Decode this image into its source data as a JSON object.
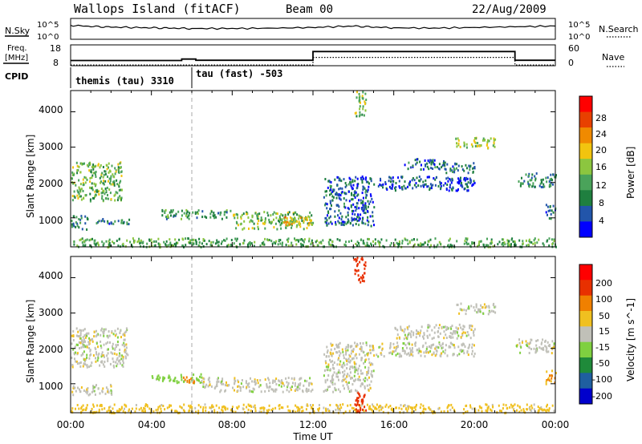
{
  "header": {
    "station": "Wallops Island (fitACF)",
    "beam": "Beam 00",
    "date": "22/Aug/2009"
  },
  "time_axis": {
    "label": "Time UT",
    "ticks": [
      "00:00",
      "04:00",
      "08:00",
      "12:00",
      "16:00",
      "20:00",
      "00:00"
    ]
  },
  "noise_panel": {
    "left_label": "N.Sky",
    "right_label": "N.Search",
    "left_ticks": [
      "10^5",
      "10^0"
    ],
    "right_ticks": [
      "10^5",
      "10^0"
    ]
  },
  "freq_panel": {
    "left_label_top": "Freq.",
    "left_label_unit": "[MHz]",
    "right_label": "Nave",
    "left_ticks": [
      "18",
      "8"
    ],
    "right_ticks": [
      "60",
      "0"
    ]
  },
  "cpid": {
    "label": "CPID",
    "segments": [
      "themis (tau) 3310",
      "tau (fast) -503"
    ]
  },
  "power_panel": {
    "ylabel": "Slant Range [km]",
    "yticks": [
      "4000",
      "3000",
      "2000",
      "1000"
    ],
    "colorbar_label": "Power [dB]",
    "colorbar_ticks": [
      "28",
      "24",
      "20",
      "16",
      "12",
      "8",
      "4"
    ]
  },
  "velocity_panel": {
    "ylabel": "Slant Range [km]",
    "yticks": [
      "4000",
      "3000",
      "2000",
      "1000"
    ],
    "colorbar_label": "Velocity [m s^-1]",
    "colorbar_ticks": [
      "200",
      "100",
      "50",
      "15",
      "-15",
      "-50",
      "-100",
      "-200"
    ]
  },
  "colors": {
    "power_scale": [
      "#0000ff",
      "#2255aa",
      "#1f7f3f",
      "#4aa35a",
      "#8cc63f",
      "#f2c40f",
      "#f08a00",
      "#e84000",
      "#ff0000"
    ],
    "velocity_scale": [
      "#0000cc",
      "#1f5fa0",
      "#1f8a3a",
      "#7fd040",
      "#c0c0b8",
      "#f0c020",
      "#f08000",
      "#e83000",
      "#ff0000"
    ]
  },
  "chart_data": {
    "type": "heatmap",
    "x_unit": "hours UT",
    "xlim": [
      0,
      24
    ],
    "ylim": [
      180,
      4600
    ],
    "noise_sky": [
      [
        0,
        3.5
      ],
      [
        1,
        3.2
      ],
      [
        2,
        3.0
      ],
      [
        3,
        2.9
      ],
      [
        4,
        2.8
      ],
      [
        5,
        2.7
      ],
      [
        6,
        2.6
      ],
      [
        8,
        2.6
      ],
      [
        10,
        2.7
      ],
      [
        12,
        2.9
      ],
      [
        13,
        3.1
      ],
      [
        14,
        3.3
      ],
      [
        15,
        3.0
      ],
      [
        16,
        2.8
      ],
      [
        18,
        2.7
      ],
      [
        20,
        2.9
      ],
      [
        22,
        3.1
      ],
      [
        24,
        3.3
      ]
    ],
    "frequency_mhz": [
      [
        0,
        10.5
      ],
      [
        5.5,
        10.5
      ],
      [
        5.5,
        11.2
      ],
      [
        6.2,
        11.2
      ],
      [
        6.2,
        10.6
      ],
      [
        12,
        10.6
      ],
      [
        12,
        14.8
      ],
      [
        22,
        14.8
      ],
      [
        22,
        10.6
      ],
      [
        24,
        10.6
      ]
    ],
    "nave": [
      [
        0,
        2
      ],
      [
        12,
        2
      ],
      [
        12,
        24
      ],
      [
        22,
        24
      ],
      [
        22,
        2
      ],
      [
        24,
        2
      ]
    ],
    "cpid_change_hour": 6,
    "power_regions": [
      {
        "t0": 0.0,
        "t1": 2.5,
        "r0": 1500,
        "r1": 2600,
        "db": 14
      },
      {
        "t0": 0.0,
        "t1": 0.8,
        "r0": 700,
        "r1": 1100,
        "db": 9
      },
      {
        "t0": 0.8,
        "t1": 3.0,
        "r0": 850,
        "r1": 1000,
        "db": 8
      },
      {
        "t0": 4.5,
        "t1": 8.0,
        "r0": 1000,
        "r1": 1250,
        "db": 10
      },
      {
        "t0": 8.0,
        "t1": 12.0,
        "r0": 700,
        "r1": 1200,
        "db": 14
      },
      {
        "t0": 10.5,
        "t1": 12.0,
        "r0": 800,
        "r1": 1050,
        "db": 20
      },
      {
        "t0": 0.0,
        "t1": 24.0,
        "r0": 200,
        "r1": 450,
        "db": 12
      },
      {
        "t0": 14.0,
        "t1": 14.6,
        "r0": 3900,
        "r1": 4600,
        "db": 14
      },
      {
        "t0": 12.5,
        "t1": 15.0,
        "r0": 800,
        "r1": 2200,
        "db": 6
      },
      {
        "t0": 15.0,
        "t1": 20.0,
        "r0": 1800,
        "r1": 2200,
        "db": 5
      },
      {
        "t0": 16.5,
        "t1": 18.5,
        "r0": 2400,
        "r1": 2700,
        "db": 6
      },
      {
        "t0": 19.0,
        "t1": 21.0,
        "r0": 3000,
        "r1": 3300,
        "db": 16
      },
      {
        "t0": 18.5,
        "t1": 20.0,
        "r0": 2300,
        "r1": 2600,
        "db": 8
      },
      {
        "t0": 22.0,
        "t1": 24.0,
        "r0": 1900,
        "r1": 2300,
        "db": 9
      },
      {
        "t0": 23.5,
        "t1": 24.0,
        "r0": 1000,
        "r1": 1400,
        "db": 6
      }
    ],
    "velocity_regions": [
      {
        "t0": 0.0,
        "t1": 2.8,
        "r0": 1500,
        "r1": 2600,
        "v": 0
      },
      {
        "t0": 0.0,
        "t1": 2.0,
        "r0": 700,
        "r1": 1000,
        "v": 0
      },
      {
        "t0": 4.0,
        "t1": 6.5,
        "r0": 1050,
        "r1": 1300,
        "v": 30
      },
      {
        "t0": 6.5,
        "t1": 12.0,
        "r0": 800,
        "r1": 1200,
        "v": 0
      },
      {
        "t0": 5.5,
        "t1": 6.2,
        "r0": 1050,
        "r1": 1250,
        "v": -70
      },
      {
        "t0": 0.0,
        "t1": 24.0,
        "r0": 200,
        "r1": 450,
        "v": -30
      },
      {
        "t0": 14.0,
        "t1": 14.6,
        "r0": 200,
        "r1": 900,
        "v": -150
      },
      {
        "t0": 14.0,
        "t1": 14.6,
        "r0": 3900,
        "r1": 4600,
        "v": -150
      },
      {
        "t0": 12.5,
        "t1": 15.0,
        "r0": 800,
        "r1": 2200,
        "v": 0
      },
      {
        "t0": 15.0,
        "t1": 20.0,
        "r0": 1800,
        "r1": 2200,
        "v": 0
      },
      {
        "t0": 19.0,
        "t1": 21.0,
        "r0": 3000,
        "r1": 3300,
        "v": 0
      },
      {
        "t0": 16.0,
        "t1": 20.0,
        "r0": 2300,
        "r1": 2700,
        "v": 0
      },
      {
        "t0": 22.0,
        "t1": 24.0,
        "r0": 1900,
        "r1": 2300,
        "v": 0
      },
      {
        "t0": 23.5,
        "t1": 24.0,
        "r0": 1000,
        "r1": 1400,
        "v": -40
      }
    ]
  }
}
